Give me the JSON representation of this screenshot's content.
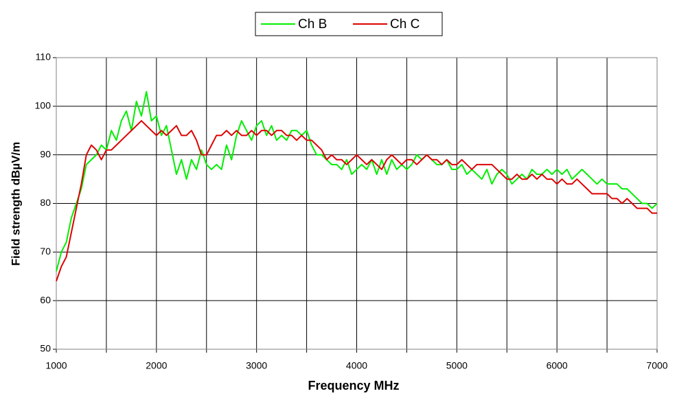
{
  "chart_data": {
    "type": "line",
    "xlabel": "Frequency MHz",
    "ylabel": "Field strength dBµV/m",
    "x": [
      1000,
      1050,
      1100,
      1150,
      1200,
      1250,
      1300,
      1350,
      1400,
      1450,
      1500,
      1550,
      1600,
      1650,
      1700,
      1750,
      1800,
      1850,
      1900,
      1950,
      2000,
      2050,
      2100,
      2150,
      2200,
      2250,
      2300,
      2350,
      2400,
      2450,
      2500,
      2550,
      2600,
      2650,
      2700,
      2750,
      2800,
      2850,
      2900,
      2950,
      3000,
      3050,
      3100,
      3150,
      3200,
      3250,
      3300,
      3350,
      3400,
      3450,
      3500,
      3550,
      3600,
      3650,
      3700,
      3750,
      3800,
      3850,
      3900,
      3950,
      4000,
      4050,
      4100,
      4150,
      4200,
      4250,
      4300,
      4350,
      4400,
      4450,
      4500,
      4550,
      4600,
      4650,
      4700,
      4750,
      4800,
      4850,
      4900,
      4950,
      5000,
      5050,
      5100,
      5150,
      5200,
      5250,
      5300,
      5350,
      5400,
      5450,
      5500,
      5550,
      5600,
      5650,
      5700,
      5750,
      5800,
      5850,
      5900,
      5950,
      6000,
      6050,
      6100,
      6150,
      6200,
      6250,
      6300,
      6350,
      6400,
      6450,
      6500,
      6550,
      6600,
      6650,
      6700,
      6750,
      6800,
      6850,
      6900,
      6950,
      7000
    ],
    "series": [
      {
        "name": "Ch B",
        "color": "#00ee00",
        "values": [
          66,
          70,
          72,
          77,
          80,
          83,
          88,
          89,
          90,
          92,
          91,
          95,
          93,
          97,
          99,
          95,
          101,
          98,
          103,
          97,
          98,
          94,
          96,
          91,
          86,
          89,
          85,
          89,
          87,
          91,
          88,
          87,
          88,
          87,
          92,
          89,
          94,
          97,
          95,
          93,
          96,
          97,
          94,
          96,
          93,
          94,
          93,
          95,
          95,
          94,
          95,
          92,
          90,
          90,
          89,
          88,
          88,
          87,
          89,
          86,
          87,
          88,
          87,
          89,
          86,
          89,
          86,
          89,
          87,
          88,
          87,
          88,
          90,
          89,
          90,
          89,
          88,
          88,
          89,
          87,
          87,
          88,
          86,
          87,
          86,
          85,
          87,
          84,
          86,
          87,
          86,
          84,
          85,
          86,
          85,
          87,
          86,
          86,
          87,
          86,
          87,
          86,
          87,
          85,
          86,
          87,
          86,
          85,
          84,
          85,
          84,
          84,
          84,
          83,
          83,
          82,
          81,
          80,
          80,
          79,
          80
        ]
      },
      {
        "name": "Ch C",
        "color": "#dd0000",
        "values": [
          64,
          67,
          69,
          74,
          79,
          84,
          90,
          92,
          91,
          89,
          91,
          91,
          92,
          93,
          94,
          95,
          96,
          97,
          96,
          95,
          94,
          95,
          94,
          95,
          96,
          94,
          94,
          95,
          93,
          90,
          90,
          92,
          94,
          94,
          95,
          94,
          95,
          94,
          94,
          95,
          94,
          95,
          95,
          94,
          95,
          95,
          94,
          94,
          93,
          94,
          93,
          93,
          92,
          91,
          89,
          90,
          89,
          89,
          88,
          89,
          90,
          89,
          88,
          89,
          88,
          87,
          89,
          90,
          89,
          88,
          89,
          89,
          88,
          89,
          90,
          89,
          89,
          88,
          89,
          88,
          88,
          89,
          88,
          87,
          88,
          88,
          88,
          88,
          87,
          86,
          85,
          85,
          86,
          85,
          85,
          86,
          85,
          86,
          85,
          85,
          84,
          85,
          84,
          84,
          85,
          84,
          83,
          82,
          82,
          82,
          82,
          81,
          81,
          80,
          81,
          80,
          79,
          79,
          79,
          78,
          78
        ]
      }
    ],
    "xlim": [
      1000,
      7000
    ],
    "xticks": [
      1000,
      2000,
      3000,
      4000,
      5000,
      6000,
      7000
    ],
    "xminor": [
      1500,
      2500,
      3500,
      4500,
      5500,
      6500
    ],
    "ylim": [
      50,
      110
    ],
    "yticks": [
      50,
      60,
      70,
      80,
      90,
      100,
      110
    ],
    "grid": true
  }
}
